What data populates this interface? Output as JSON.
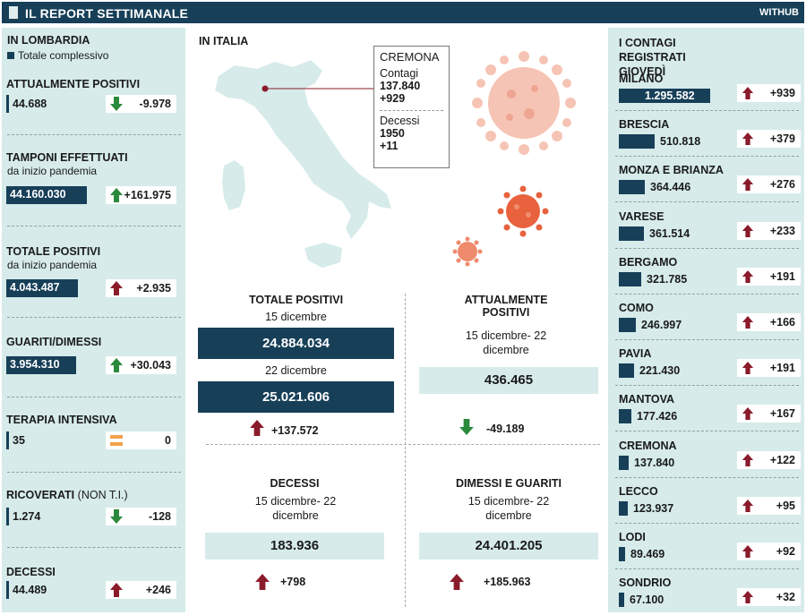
{
  "header": {
    "title": "IL REPORT SETTIMANALE",
    "brand": "WITHUB"
  },
  "lombardia": {
    "heading": "IN LOMBARDIA",
    "legend": "Totale complessivo",
    "stats": [
      {
        "label": "ATTUALMENTE POSITIVI",
        "sub": "",
        "value": "44.688",
        "delta": "-9.978",
        "dir": "down"
      },
      {
        "label": "TAMPONI EFFETTUATI",
        "sub": "da inizio pandemia",
        "value": "44.160.030",
        "delta": "+161.975",
        "dir": "up"
      },
      {
        "label": "TOTALE POSITIVI",
        "sub": "da inizio pandemia",
        "value": "4.043.487",
        "delta": "+2.935",
        "dir": "up"
      },
      {
        "label": "GUARITI/DIMESSI",
        "sub": "",
        "value": "3.954.310",
        "delta": "+30.043",
        "dir": "up"
      },
      {
        "label": "TERAPIA INTENSIVA",
        "sub": "",
        "value": "35",
        "delta": "0",
        "dir": "equal"
      },
      {
        "label": "RICOVERATI",
        "label_extra": "(NON T.I.)",
        "sub": "",
        "value": "1.274",
        "delta": "-128",
        "dir": "down"
      },
      {
        "label": "DECESSI",
        "sub": "",
        "value": "44.489",
        "delta": "+246",
        "dir": "up"
      }
    ]
  },
  "italia": {
    "heading": "IN ITALIA",
    "cremona": {
      "name": "CREMONA",
      "contagi_label": "Contagi",
      "contagi": "137.840",
      "contagi_delta": "+929",
      "decessi_label": "Decessi",
      "decessi": "1950",
      "decessi_delta": "+11"
    },
    "totale_positivi": {
      "title": "TOTALE POSITIVI",
      "date1": "15 dicembre",
      "value1": "24.884.034",
      "date2": "22 dicembre",
      "value2": "25.021.606",
      "delta": "+137.572"
    },
    "attualmente_positivi": {
      "title": "ATTUALMENTE POSITIVI",
      "period": "15 dicembre- 22 dicembre",
      "value": "436.465",
      "delta": "-49.189"
    },
    "decessi": {
      "title": "DECESSI",
      "period": "15 dicembre- 22 dicembre",
      "value": "183.936",
      "delta": "+798"
    },
    "dimessi": {
      "title": "DIMESSI E GUARITI",
      "period": "15 dicembre- 22 dicembre",
      "value": "24.401.205",
      "delta": "+185.963"
    }
  },
  "province": {
    "heading": "I CONTAGI REGISTRATI GIOVEDÌ",
    "items": [
      {
        "name": "MILANO",
        "value": "1.295.582",
        "num": 1295582,
        "delta": "+939"
      },
      {
        "name": "BRESCIA",
        "value": "510.818",
        "num": 510818,
        "delta": "+379"
      },
      {
        "name": "MONZA E BRIANZA",
        "value": "364.446",
        "num": 364446,
        "delta": "+276"
      },
      {
        "name": "VARESE",
        "value": "361.514",
        "num": 361514,
        "delta": "+233"
      },
      {
        "name": "BERGAMO",
        "value": "321.785",
        "num": 321785,
        "delta": "+191"
      },
      {
        "name": "COMO",
        "value": "246.997",
        "num": 246997,
        "delta": "+166"
      },
      {
        "name": "PAVIA",
        "value": "221.430",
        "num": 221430,
        "delta": "+191"
      },
      {
        "name": "MANTOVA",
        "value": "177.426",
        "num": 177426,
        "delta": "+167"
      },
      {
        "name": "CREMONA",
        "value": "137.840",
        "num": 137840,
        "delta": "+122"
      },
      {
        "name": "LECCO",
        "value": "123.937",
        "num": 123937,
        "delta": "+95"
      },
      {
        "name": "LODI",
        "value": "89.469",
        "num": 89469,
        "delta": "+92"
      },
      {
        "name": "SONDRIO",
        "value": "67.100",
        "num": 67100,
        "delta": "+32"
      }
    ]
  },
  "colors": {
    "navy": "#173f58",
    "panel": "#d6ebea",
    "up": "#8a1b2a",
    "down": "#2a8a3b",
    "equal": "#f0a24a"
  }
}
